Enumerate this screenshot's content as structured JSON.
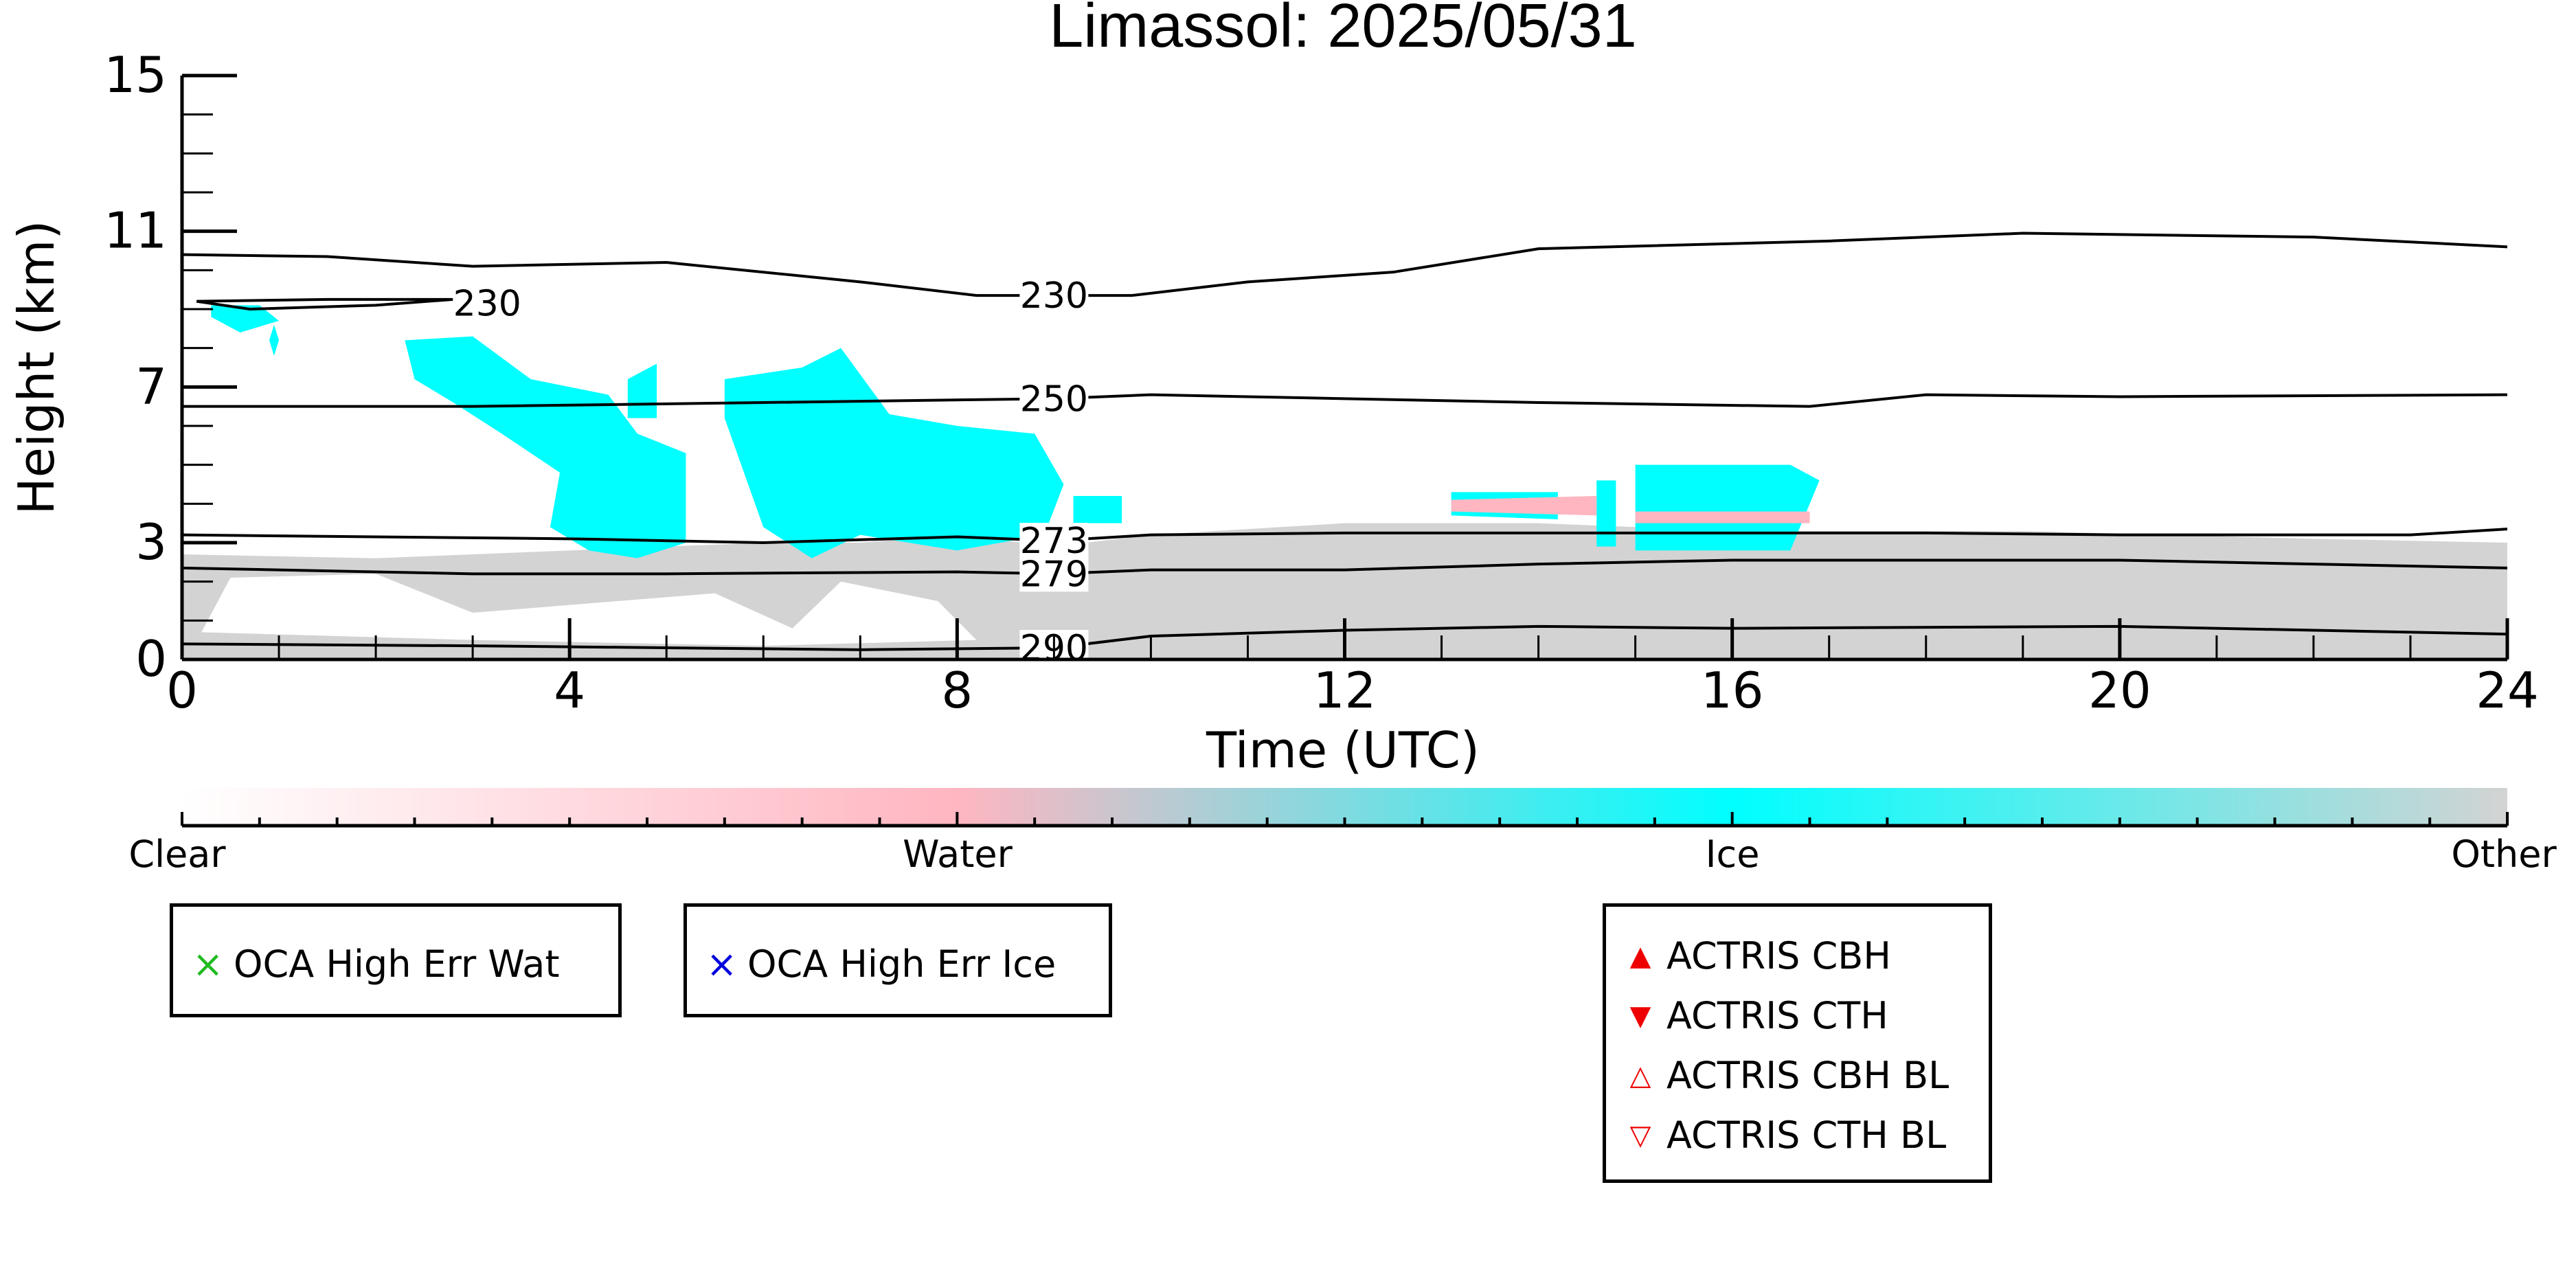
{
  "chart_data": {
    "type": "heatmap",
    "title": "Limassol: 2025/05/31",
    "xlabel": "Time (UTC)",
    "ylabel": "Height (km)",
    "xlim": [
      0,
      24
    ],
    "ylim": [
      0,
      15
    ],
    "x_ticks": [
      0,
      4,
      8,
      12,
      16,
      20,
      24
    ],
    "y_ticks": [
      0,
      3,
      7,
      11,
      15
    ],
    "colorbar": {
      "categories": [
        "Clear",
        "Water",
        "Ice",
        "Other"
      ],
      "colors": [
        "#ffffff",
        "#ffb6c1",
        "#00ffff",
        "#d3d3d3"
      ]
    },
    "contours": [
      {
        "label": "230",
        "points": [
          [
            0,
            10.4
          ],
          [
            1.5,
            10.35
          ],
          [
            3,
            10.1
          ],
          [
            5,
            10.2
          ],
          [
            7,
            9.7
          ],
          [
            8.2,
            9.35
          ],
          [
            9.8,
            9.35
          ],
          [
            11,
            9.7
          ],
          [
            12.5,
            9.95
          ],
          [
            14,
            10.55
          ],
          [
            17,
            10.75
          ],
          [
            19,
            10.95
          ],
          [
            22,
            10.85
          ],
          [
            24,
            10.6
          ]
        ]
      },
      {
        "label": "230",
        "points": [
          [
            0.15,
            9.2
          ],
          [
            1.5,
            9.25
          ],
          [
            2.8,
            9.25
          ],
          [
            2,
            9.1
          ],
          [
            0.7,
            9.0
          ],
          [
            0.15,
            9.2
          ]
        ]
      },
      {
        "label": "250",
        "points": [
          [
            0,
            6.5
          ],
          [
            3,
            6.5
          ],
          [
            6,
            6.6
          ],
          [
            9,
            6.7
          ],
          [
            10,
            6.8
          ],
          [
            12,
            6.7
          ],
          [
            14,
            6.6
          ],
          [
            16.8,
            6.5
          ],
          [
            18,
            6.8
          ],
          [
            20,
            6.75
          ],
          [
            24,
            6.8
          ]
        ]
      },
      {
        "label": "273",
        "points": [
          [
            0,
            3.2
          ],
          [
            4,
            3.1
          ],
          [
            6,
            3.0
          ],
          [
            8,
            3.15
          ],
          [
            9,
            3.05
          ],
          [
            10,
            3.2
          ],
          [
            12,
            3.25
          ],
          [
            14,
            3.25
          ],
          [
            16,
            3.25
          ],
          [
            18,
            3.25
          ],
          [
            20,
            3.2
          ],
          [
            23,
            3.2
          ],
          [
            24,
            3.35
          ]
        ]
      },
      {
        "label": "279",
        "points": [
          [
            0,
            2.35
          ],
          [
            3,
            2.2
          ],
          [
            5,
            2.2
          ],
          [
            8,
            2.25
          ],
          [
            9,
            2.2
          ],
          [
            10,
            2.3
          ],
          [
            12,
            2.3
          ],
          [
            14,
            2.45
          ],
          [
            16,
            2.55
          ],
          [
            20,
            2.55
          ],
          [
            24,
            2.35
          ]
        ]
      },
      {
        "label": "290",
        "points": [
          [
            0,
            0.4
          ],
          [
            3,
            0.35
          ],
          [
            5,
            0.3
          ],
          [
            7,
            0.25
          ],
          [
            9,
            0.3
          ],
          [
            10,
            0.6
          ],
          [
            12,
            0.75
          ],
          [
            14,
            0.85
          ],
          [
            16,
            0.8
          ],
          [
            20,
            0.85
          ],
          [
            24,
            0.65
          ]
        ]
      }
    ],
    "regions": [
      {
        "class": "Other",
        "points": [
          [
            0,
            0
          ],
          [
            0,
            2.7
          ],
          [
            2,
            2.6
          ],
          [
            4,
            2.8
          ],
          [
            6,
            3.0
          ],
          [
            7,
            3.0
          ],
          [
            8,
            3.2
          ],
          [
            9,
            2.9
          ],
          [
            10,
            3.2
          ],
          [
            12,
            3.5
          ],
          [
            14,
            3.5
          ],
          [
            16,
            3.3
          ],
          [
            19,
            3.3
          ],
          [
            22,
            3.1
          ],
          [
            24,
            3.0
          ],
          [
            24,
            0
          ]
        ]
      },
      {
        "class": "Clear",
        "points": [
          [
            0.2,
            0.7
          ],
          [
            0.5,
            2.1
          ],
          [
            2,
            2.2
          ],
          [
            3,
            1.2
          ],
          [
            5.5,
            1.7
          ],
          [
            6.3,
            0.8
          ],
          [
            6.8,
            2.0
          ],
          [
            7.8,
            1.5
          ],
          [
            8.2,
            0.5
          ],
          [
            6,
            0.35
          ],
          [
            3,
            0.5
          ]
        ]
      },
      {
        "class": "Ice",
        "points": [
          [
            0.3,
            9.1
          ],
          [
            0.8,
            9.1
          ],
          [
            1.0,
            8.7
          ],
          [
            0.6,
            8.4
          ],
          [
            0.3,
            8.8
          ]
        ]
      },
      {
        "class": "Ice",
        "points": [
          [
            0.95,
            8.6
          ],
          [
            1.0,
            8.2
          ],
          [
            0.95,
            7.8
          ],
          [
            0.9,
            8.2
          ]
        ]
      },
      {
        "class": "Ice",
        "points": [
          [
            2.3,
            8.2
          ],
          [
            3.0,
            8.3
          ],
          [
            3.6,
            7.2
          ],
          [
            4.4,
            6.8
          ],
          [
            4.7,
            5.8
          ],
          [
            5.2,
            5.3
          ],
          [
            5.2,
            3.0
          ],
          [
            4.7,
            2.6
          ],
          [
            4.2,
            2.8
          ],
          [
            3.8,
            3.4
          ],
          [
            3.9,
            4.8
          ],
          [
            3.3,
            5.8
          ],
          [
            2.8,
            6.6
          ],
          [
            2.4,
            7.2
          ]
        ]
      },
      {
        "class": "Ice",
        "points": [
          [
            4.6,
            7.2
          ],
          [
            4.9,
            7.6
          ],
          [
            4.9,
            6.2
          ],
          [
            4.6,
            6.2
          ]
        ]
      },
      {
        "class": "Ice",
        "points": [
          [
            5.6,
            7.2
          ],
          [
            6.4,
            7.5
          ],
          [
            6.8,
            8.0
          ],
          [
            7.3,
            6.3
          ],
          [
            8.0,
            6.0
          ],
          [
            8.8,
            5.8
          ],
          [
            9.1,
            4.5
          ],
          [
            8.9,
            3.2
          ],
          [
            8.0,
            2.8
          ],
          [
            7.0,
            3.2
          ],
          [
            6.5,
            2.6
          ],
          [
            6.0,
            3.4
          ],
          [
            5.8,
            4.8
          ],
          [
            5.6,
            6.2
          ]
        ]
      },
      {
        "class": "Ice",
        "points": [
          [
            9.2,
            4.2
          ],
          [
            9.7,
            4.2
          ],
          [
            9.7,
            3.5
          ],
          [
            9.2,
            3.5
          ]
        ]
      },
      {
        "class": "Ice",
        "points": [
          [
            13.1,
            4.3
          ],
          [
            14.2,
            4.3
          ],
          [
            14.2,
            3.6
          ],
          [
            13.1,
            3.7
          ]
        ]
      },
      {
        "class": "Ice",
        "points": [
          [
            14.6,
            4.6
          ],
          [
            14.8,
            4.6
          ],
          [
            14.8,
            2.9
          ],
          [
            14.6,
            2.9
          ]
        ]
      },
      {
        "class": "Ice",
        "points": [
          [
            15.0,
            5.0
          ],
          [
            16.6,
            5.0
          ],
          [
            16.9,
            4.6
          ],
          [
            16.6,
            2.8
          ],
          [
            15.0,
            2.8
          ]
        ]
      },
      {
        "class": "Water",
        "points": [
          [
            13.1,
            4.1
          ],
          [
            14.6,
            4.2
          ],
          [
            14.6,
            3.7
          ],
          [
            13.1,
            3.8
          ]
        ]
      },
      {
        "class": "Water",
        "points": [
          [
            15.0,
            3.8
          ],
          [
            16.8,
            3.8
          ],
          [
            16.8,
            3.5
          ],
          [
            15.0,
            3.5
          ]
        ]
      }
    ]
  },
  "colorbar_labels": [
    "Clear",
    "Water",
    "Ice",
    "Other"
  ],
  "legend_oca_water": {
    "label": "OCA High Err Wat",
    "marker": "×",
    "color": "#22bb22"
  },
  "legend_oca_ice": {
    "label": "OCA High Err Ice",
    "marker": "×",
    "color": "#0000dd"
  },
  "legend_actris": [
    {
      "label": "ACTRIS CBH",
      "marker": "▲",
      "color": "#ee0000"
    },
    {
      "label": "ACTRIS CTH",
      "marker": "▼",
      "color": "#ee0000"
    },
    {
      "label": "ACTRIS CBH BL",
      "marker": "△",
      "color": "#ee0000"
    },
    {
      "label": "ACTRIS CTH BL",
      "marker": "▽",
      "color": "#ee0000"
    }
  ]
}
